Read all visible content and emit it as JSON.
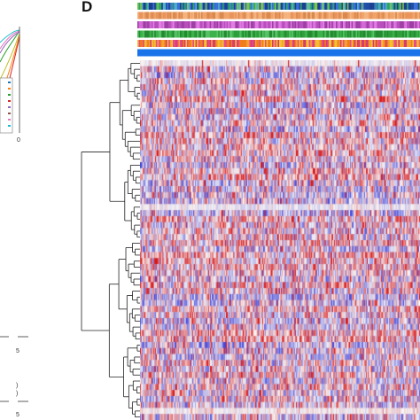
{
  "panel": {
    "label": "D"
  },
  "left_fragment": {
    "tick_values": [
      "5",
      "5",
      "0"
    ]
  },
  "annotation_tracks": [
    {
      "name": "",
      "palette": [
        "#1f4fa6",
        "#2ea36b",
        "#3a6fd8",
        "#7cc24a",
        "#1c3f8f",
        "#4fb0c6"
      ]
    },
    {
      "name": "",
      "palette": [
        "#f0a36a",
        "#e8955c",
        "#f3b27e",
        "#d9894e"
      ]
    },
    {
      "name": "",
      "palette": [
        "#d46ad6",
        "#b84fbd",
        "#e07ee3",
        "#9e3fa3"
      ]
    },
    {
      "name": "",
      "palette": [
        "#2e9e3a",
        "#3cb34a",
        "#248a30",
        "#57c066"
      ]
    },
    {
      "name": "",
      "palette": [
        "#f07d1a",
        "#e84a8a",
        "#f3a232",
        "#d83c6e",
        "#f2c12e"
      ]
    },
    {
      "name": "",
      "palette": [
        "#1a73e8"
      ]
    }
  ],
  "heatmap": {
    "rows": 60,
    "cols": 300,
    "colors": {
      "high": "#d7191c",
      "mid": "#f7f7f7",
      "low": "#3b3bd6"
    }
  }
}
